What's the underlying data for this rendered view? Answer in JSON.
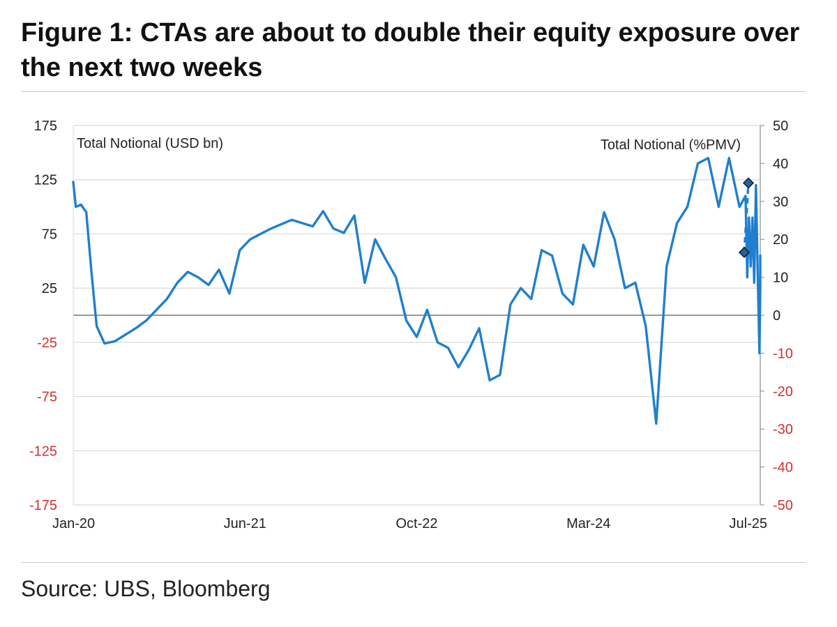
{
  "header": {
    "title": "Figure 1: CTAs are about to double their equity exposure over the next two weeks"
  },
  "footer": {
    "source": "Source: UBS, Bloomberg"
  },
  "colors": {
    "series": "#1f7fce",
    "grid": "#d9d9d9",
    "zero_line": "#8a8a8a",
    "axis_text": "#222222",
    "negative_tick": "#d32f2f",
    "marker": "#2b5f9e"
  },
  "chart_data": {
    "type": "line",
    "left_axis_label": "Total Notional (USD bn)",
    "right_axis_label": "Total Notional (%PMV)",
    "ylim_left": [
      -175,
      175
    ],
    "ylim_right": [
      -50,
      50
    ],
    "left_ticks": [
      "175",
      "125",
      "75",
      "25",
      "-25",
      "-75",
      "-125",
      "-175"
    ],
    "right_ticks": [
      "50",
      "40",
      "30",
      "20",
      "10",
      "0",
      "-10",
      "-20",
      "-30",
      "-40",
      "-50"
    ],
    "x_ticks": [
      "Jan-20",
      "Jun-21",
      "Oct-22",
      "Mar-24",
      "Jul-25"
    ],
    "xlim": [
      "2020-01",
      "2025-07"
    ],
    "grid": true,
    "series": [
      {
        "points": [
          [
            "2020-01",
            123
          ],
          [
            "2020-01",
            100
          ],
          [
            "2020-02",
            102
          ],
          [
            "2020-02",
            95
          ],
          [
            "2020-03",
            40
          ],
          [
            "2020-03",
            -10
          ],
          [
            "2020-04",
            -26
          ],
          [
            "2020-05",
            -24
          ],
          [
            "2020-06",
            -18
          ],
          [
            "2020-07",
            -12
          ],
          [
            "2020-08",
            -5
          ],
          [
            "2020-09",
            5
          ],
          [
            "2020-10",
            15
          ],
          [
            "2020-11",
            30
          ],
          [
            "2020-12",
            40
          ],
          [
            "2021-01",
            35
          ],
          [
            "2021-02",
            28
          ],
          [
            "2021-03",
            42
          ],
          [
            "2021-04",
            20
          ],
          [
            "2021-05",
            60
          ],
          [
            "2021-06",
            70
          ],
          [
            "2021-07",
            75
          ],
          [
            "2021-08",
            80
          ],
          [
            "2021-09",
            84
          ],
          [
            "2021-10",
            88
          ],
          [
            "2021-11",
            85
          ],
          [
            "2021-12",
            82
          ],
          [
            "2022-01",
            96
          ],
          [
            "2022-02",
            80
          ],
          [
            "2022-03",
            76
          ],
          [
            "2022-04",
            92
          ],
          [
            "2022-05",
            30
          ],
          [
            "2022-06",
            70
          ],
          [
            "2022-07",
            52
          ],
          [
            "2022-08",
            35
          ],
          [
            "2022-09",
            -5
          ],
          [
            "2022-10",
            -20
          ],
          [
            "2022-11",
            5
          ],
          [
            "2022-12",
            -25
          ],
          [
            "2023-01",
            -30
          ],
          [
            "2023-02",
            -48
          ],
          [
            "2023-03",
            -32
          ],
          [
            "2023-04",
            -12
          ],
          [
            "2023-05",
            -60
          ],
          [
            "2023-06",
            -55
          ],
          [
            "2023-07",
            10
          ],
          [
            "2023-08",
            25
          ],
          [
            "2023-09",
            15
          ],
          [
            "2023-10",
            60
          ],
          [
            "2023-11",
            55
          ],
          [
            "2023-12",
            20
          ],
          [
            "2024-01",
            10
          ],
          [
            "2024-02",
            65
          ],
          [
            "2024-03",
            45
          ],
          [
            "2024-04",
            95
          ],
          [
            "2024-05",
            70
          ],
          [
            "2024-06",
            25
          ],
          [
            "2024-07",
            30
          ],
          [
            "2024-08",
            -10
          ],
          [
            "2024-09",
            -100
          ],
          [
            "2024-10",
            45
          ],
          [
            "2024-11",
            85
          ],
          [
            "2024-12",
            100
          ],
          [
            "2025-01",
            140
          ],
          [
            "2025-02",
            145
          ],
          [
            "2025-03",
            100
          ],
          [
            "2025-04",
            145
          ],
          [
            "2025-05",
            100
          ],
          [
            "2025-06",
            110
          ],
          [
            "2025-06",
            35
          ],
          [
            "2025-06",
            90
          ],
          [
            "2025-06",
            45
          ],
          [
            "2025-06",
            90
          ],
          [
            "2025-06",
            30
          ],
          [
            "2025-07",
            120
          ],
          [
            "2025-07",
            40
          ],
          [
            "2025-07",
            -35
          ],
          [
            "2025-07",
            25
          ],
          [
            "2025-07",
            45
          ],
          [
            "2025-07",
            55
          ]
        ]
      }
    ],
    "projection": {
      "from": [
        "2025-07",
        58
      ],
      "to": [
        "2025-07",
        122
      ]
    }
  }
}
